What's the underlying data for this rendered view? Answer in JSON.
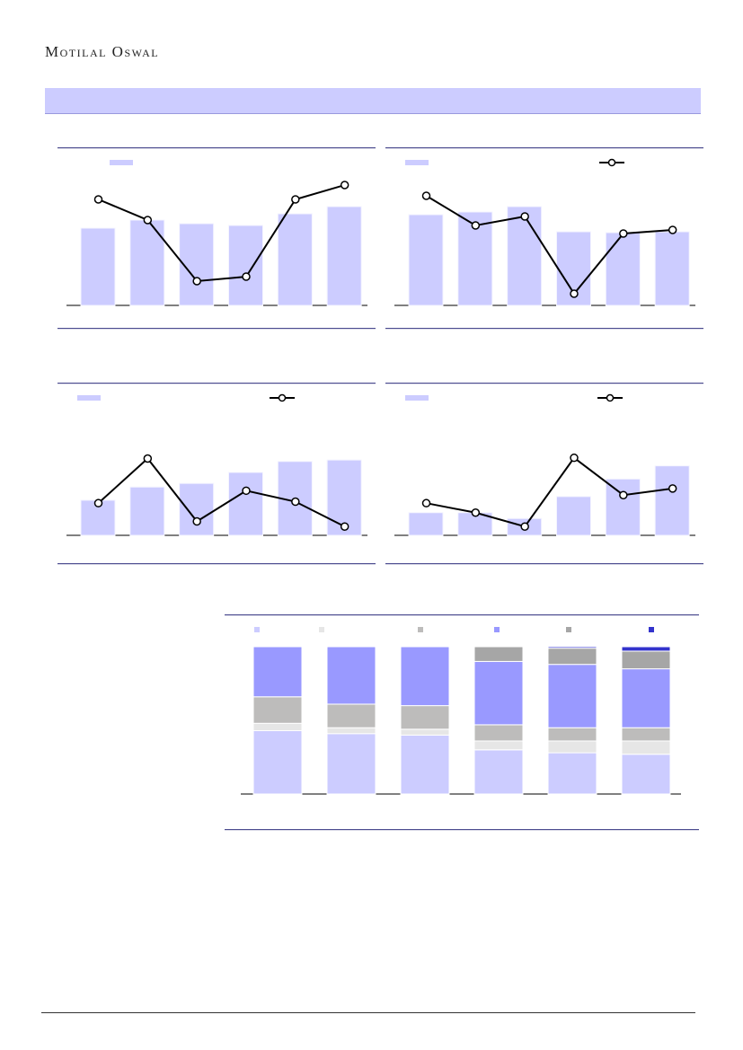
{
  "header": {
    "logo_text": "Motilal Oswal"
  },
  "colors": {
    "bar": "#ccccff",
    "line": "#000000",
    "banner": "#ccccff",
    "rule": "#4b4b8f",
    "stack": [
      "#ccccff",
      "#e6e6e6",
      "#bdbcbb",
      "#9999ff",
      "#a6a6a6",
      "#3333cc"
    ]
  },
  "chart_data": [
    {
      "type": "bar",
      "series": [
        {
          "kind": "bar",
          "values": [
            86,
            95,
            91,
            89,
            102,
            110
          ]
        },
        {
          "kind": "line",
          "values": [
            118,
            95,
            27,
            32,
            118,
            134
          ]
        }
      ],
      "legend_markers": [
        "bar"
      ]
    },
    {
      "type": "bar",
      "series": [
        {
          "kind": "bar",
          "values": [
            101,
            104,
            110,
            82,
            81,
            82
          ]
        },
        {
          "kind": "line",
          "values": [
            122,
            89,
            99,
            13,
            80,
            84
          ]
        }
      ],
      "legend_markers": [
        "bar",
        "line"
      ]
    },
    {
      "type": "bar",
      "series": [
        {
          "kind": "bar",
          "values": [
            48,
            66,
            71,
            86,
            101,
            103
          ]
        },
        {
          "kind": "line",
          "values": [
            44,
            105,
            19,
            61,
            46,
            12
          ]
        }
      ],
      "legend_markers": [
        "bar",
        "line"
      ]
    },
    {
      "type": "bar",
      "series": [
        {
          "kind": "bar",
          "values": [
            31,
            31,
            23,
            53,
            77,
            95
          ]
        },
        {
          "kind": "line",
          "values": [
            44,
            31,
            12,
            106,
            55,
            64
          ]
        }
      ],
      "legend_markers": [
        "bar",
        "line"
      ]
    },
    {
      "type": "bar",
      "stacked": true,
      "percent": true,
      "series": [
        {
          "values": [
            43,
            41,
            40,
            30,
            28,
            27
          ]
        },
        {
          "values": [
            5,
            4,
            4,
            6,
            8,
            9
          ]
        },
        {
          "values": [
            18,
            16,
            16,
            11,
            9,
            9
          ]
        },
        {
          "values": [
            34,
            39,
            40,
            43,
            43,
            40
          ]
        },
        {
          "values": [
            0,
            0,
            0,
            10,
            11,
            12
          ]
        },
        {
          "values": [
            0,
            0,
            0,
            0,
            1,
            3
          ]
        }
      ],
      "legend_markers": [
        "s1",
        "s2",
        "s3",
        "s4",
        "s5",
        "s6"
      ]
    }
  ]
}
